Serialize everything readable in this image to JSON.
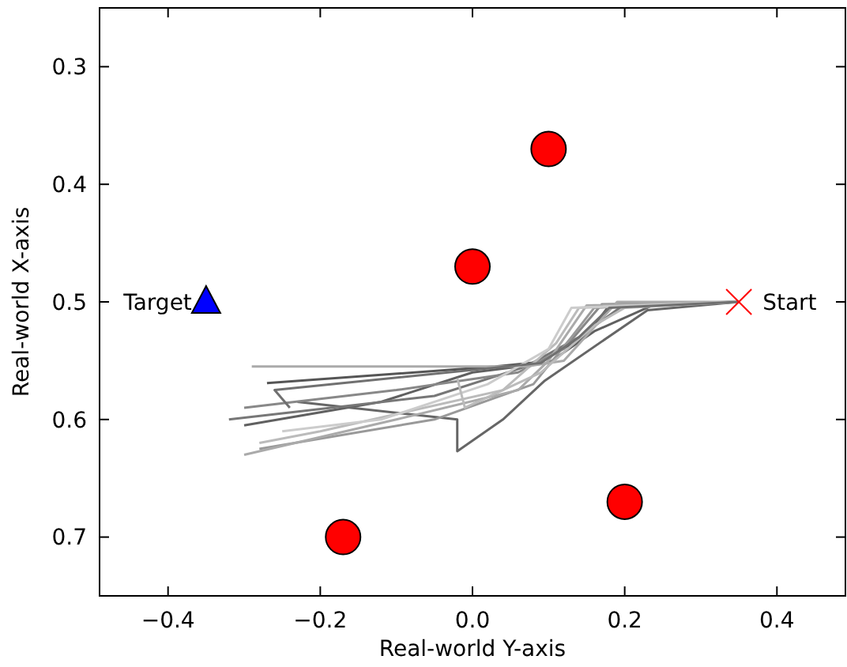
{
  "chart_data": {
    "type": "line",
    "xlabel": "Real-world Y-axis",
    "ylabel": "Real-world X-axis",
    "xlim": [
      -0.49,
      0.49
    ],
    "ylim": [
      0.75,
      0.25
    ],
    "xticks": [
      {
        "value": -0.4,
        "label": "−0.4"
      },
      {
        "value": -0.2,
        "label": "−0.2"
      },
      {
        "value": 0,
        "label": "0.0"
      },
      {
        "value": 0.2,
        "label": "0.2"
      },
      {
        "value": 0.4,
        "label": "0.4"
      }
    ],
    "yticks": [
      0.3,
      0.4,
      0.5,
      0.6,
      0.7
    ],
    "grid": false,
    "series": [
      {
        "color": "#555555",
        "marker": "none",
        "x": [
          0.35,
          0.18,
          0.15,
          0.09,
          0.03,
          -0.27
        ],
        "values": [
          0.5,
          0.503,
          0.528,
          0.551,
          0.555,
          0.569
        ]
      },
      {
        "color": "#606060",
        "marker": "none",
        "x": [
          0.35,
          0.24,
          0.16,
          0.1,
          0.0,
          -0.12,
          -0.3
        ],
        "values": [
          0.5,
          0.502,
          0.525,
          0.552,
          0.56,
          0.585,
          0.605
        ]
      },
      {
        "color": "#666666",
        "marker": "none",
        "x": [
          0.35,
          0.23,
          0.095,
          0.04,
          -0.02,
          -0.02,
          -0.23
        ],
        "values": [
          0.5,
          0.507,
          0.567,
          0.6,
          0.627,
          0.6,
          0.585
        ]
      },
      {
        "color": "#777777",
        "marker": "none",
        "x": [
          0.35,
          0.2,
          0.14,
          0.07,
          -0.05,
          -0.32
        ],
        "values": [
          0.5,
          0.502,
          0.53,
          0.555,
          0.58,
          0.6
        ]
      },
      {
        "color": "#888888",
        "marker": "none",
        "x": [
          0.35,
          0.17,
          0.12,
          0.06,
          -0.1,
          -0.3
        ],
        "values": [
          0.5,
          0.502,
          0.54,
          0.56,
          0.575,
          0.59
        ]
      },
      {
        "color": "#999999",
        "marker": "none",
        "x": [
          0.35,
          0.16,
          0.13,
          0.08,
          -0.05,
          -0.28
        ],
        "values": [
          0.5,
          0.505,
          0.53,
          0.57,
          0.6,
          0.625
        ]
      },
      {
        "color": "#aaaaaa",
        "marker": "none",
        "x": [
          0.35,
          0.15,
          0.1,
          0.06,
          -0.1,
          -0.3
        ],
        "values": [
          0.5,
          0.503,
          0.55,
          0.575,
          0.6,
          0.63
        ]
      },
      {
        "color": "#bbbbbb",
        "marker": "none",
        "x": [
          0.35,
          0.14,
          0.11,
          0.04,
          -0.2,
          -0.28
        ],
        "values": [
          0.5,
          0.505,
          0.535,
          0.575,
          0.61,
          0.62
        ]
      },
      {
        "color": "#aaaaaa",
        "marker": "none",
        "x": [
          0.35,
          0.19,
          0.12,
          0.07,
          -0.29
        ],
        "values": [
          0.5,
          0.5,
          0.55,
          0.555,
          0.555
        ]
      },
      {
        "color": "#cccccc",
        "marker": "none",
        "x": [
          0.35,
          0.13,
          0.1,
          0.02,
          -0.12,
          -0.25
        ],
        "values": [
          0.5,
          0.505,
          0.54,
          0.57,
          0.6,
          0.61
        ]
      },
      {
        "color": "#bbbbbb",
        "marker": "none",
        "x": [
          0.35,
          0.2,
          0.16,
          0.09,
          -0.01,
          -0.02
        ],
        "values": [
          0.5,
          0.505,
          0.52,
          0.56,
          0.59,
          0.565
        ]
      },
      {
        "color": "#707070",
        "marker": "none",
        "x": [
          0.35,
          0.18,
          0.14,
          0.09,
          -0.26,
          -0.24
        ],
        "values": [
          0.5,
          0.505,
          0.53,
          0.552,
          0.575,
          0.59
        ]
      },
      {
        "type": "scatter",
        "color": "#ff0000",
        "marker": "circle",
        "x": [
          0.1,
          0.0,
          0.2,
          -0.17
        ],
        "values": [
          0.37,
          0.47,
          0.67,
          0.7
        ]
      },
      {
        "type": "scatter",
        "color": "#ff0000",
        "marker": "cross",
        "x": [
          0.35
        ],
        "values": [
          0.5
        ]
      },
      {
        "type": "scatter",
        "color": "#0000ff",
        "marker": "triangle",
        "x": [
          -0.35
        ],
        "values": [
          0.5
        ]
      }
    ],
    "annotations": [
      {
        "text": "Target",
        "x": -0.35,
        "y": 0.5
      },
      {
        "text": "Start",
        "x": 0.35,
        "y": 0.5
      }
    ]
  }
}
